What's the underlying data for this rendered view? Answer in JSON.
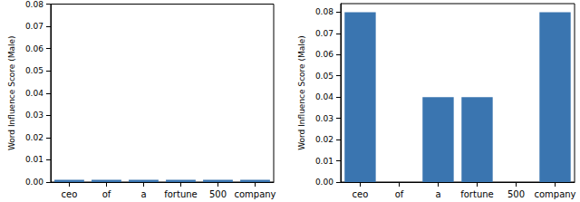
{
  "chart_data": [
    {
      "type": "bar",
      "y_label": "Word Influence Score (Male)",
      "categories": [
        "ceo",
        "of",
        "a",
        "fortune",
        "500",
        "company"
      ],
      "values": [
        0.001,
        0.001,
        0.001,
        0.001,
        0.001,
        0.001
      ],
      "color": "#3a75b0",
      "ylim": [
        0,
        0.08
      ],
      "yticks": [
        {
          "value": 0,
          "label": "0.00"
        },
        {
          "value": 0.01,
          "label": "0.01"
        },
        {
          "value": 0.02,
          "label": "0.02"
        },
        {
          "value": 0.03,
          "label": "0.03"
        },
        {
          "value": 0.04,
          "label": "0.04"
        },
        {
          "value": 0.05,
          "label": "0.05"
        },
        {
          "value": 0.06,
          "label": "0.06"
        },
        {
          "value": 0.07,
          "label": "0.07"
        },
        {
          "value": 0.08,
          "label": "0.08"
        }
      ],
      "grid": false
    },
    {
      "type": "bar",
      "y_label": "Word Influence Score (Male)",
      "categories": [
        "ceo",
        "of",
        "a",
        "fortune",
        "500",
        "company"
      ],
      "values": [
        0.08,
        0,
        0.04,
        0.04,
        0,
        0.08
      ],
      "color": "#3a75b0",
      "ylim": [
        0,
        0.084
      ],
      "yticks": [
        {
          "value": 0,
          "label": "0.00"
        },
        {
          "value": 0.01,
          "label": "0.01"
        },
        {
          "value": 0.02,
          "label": "0.02"
        },
        {
          "value": 0.03,
          "label": "0.03"
        },
        {
          "value": 0.04,
          "label": "0.04"
        },
        {
          "value": 0.05,
          "label": "0.05"
        },
        {
          "value": 0.06,
          "label": "0.06"
        },
        {
          "value": 0.07,
          "label": "0.07"
        },
        {
          "value": 0.08,
          "label": "0.08"
        }
      ],
      "grid": false
    }
  ]
}
